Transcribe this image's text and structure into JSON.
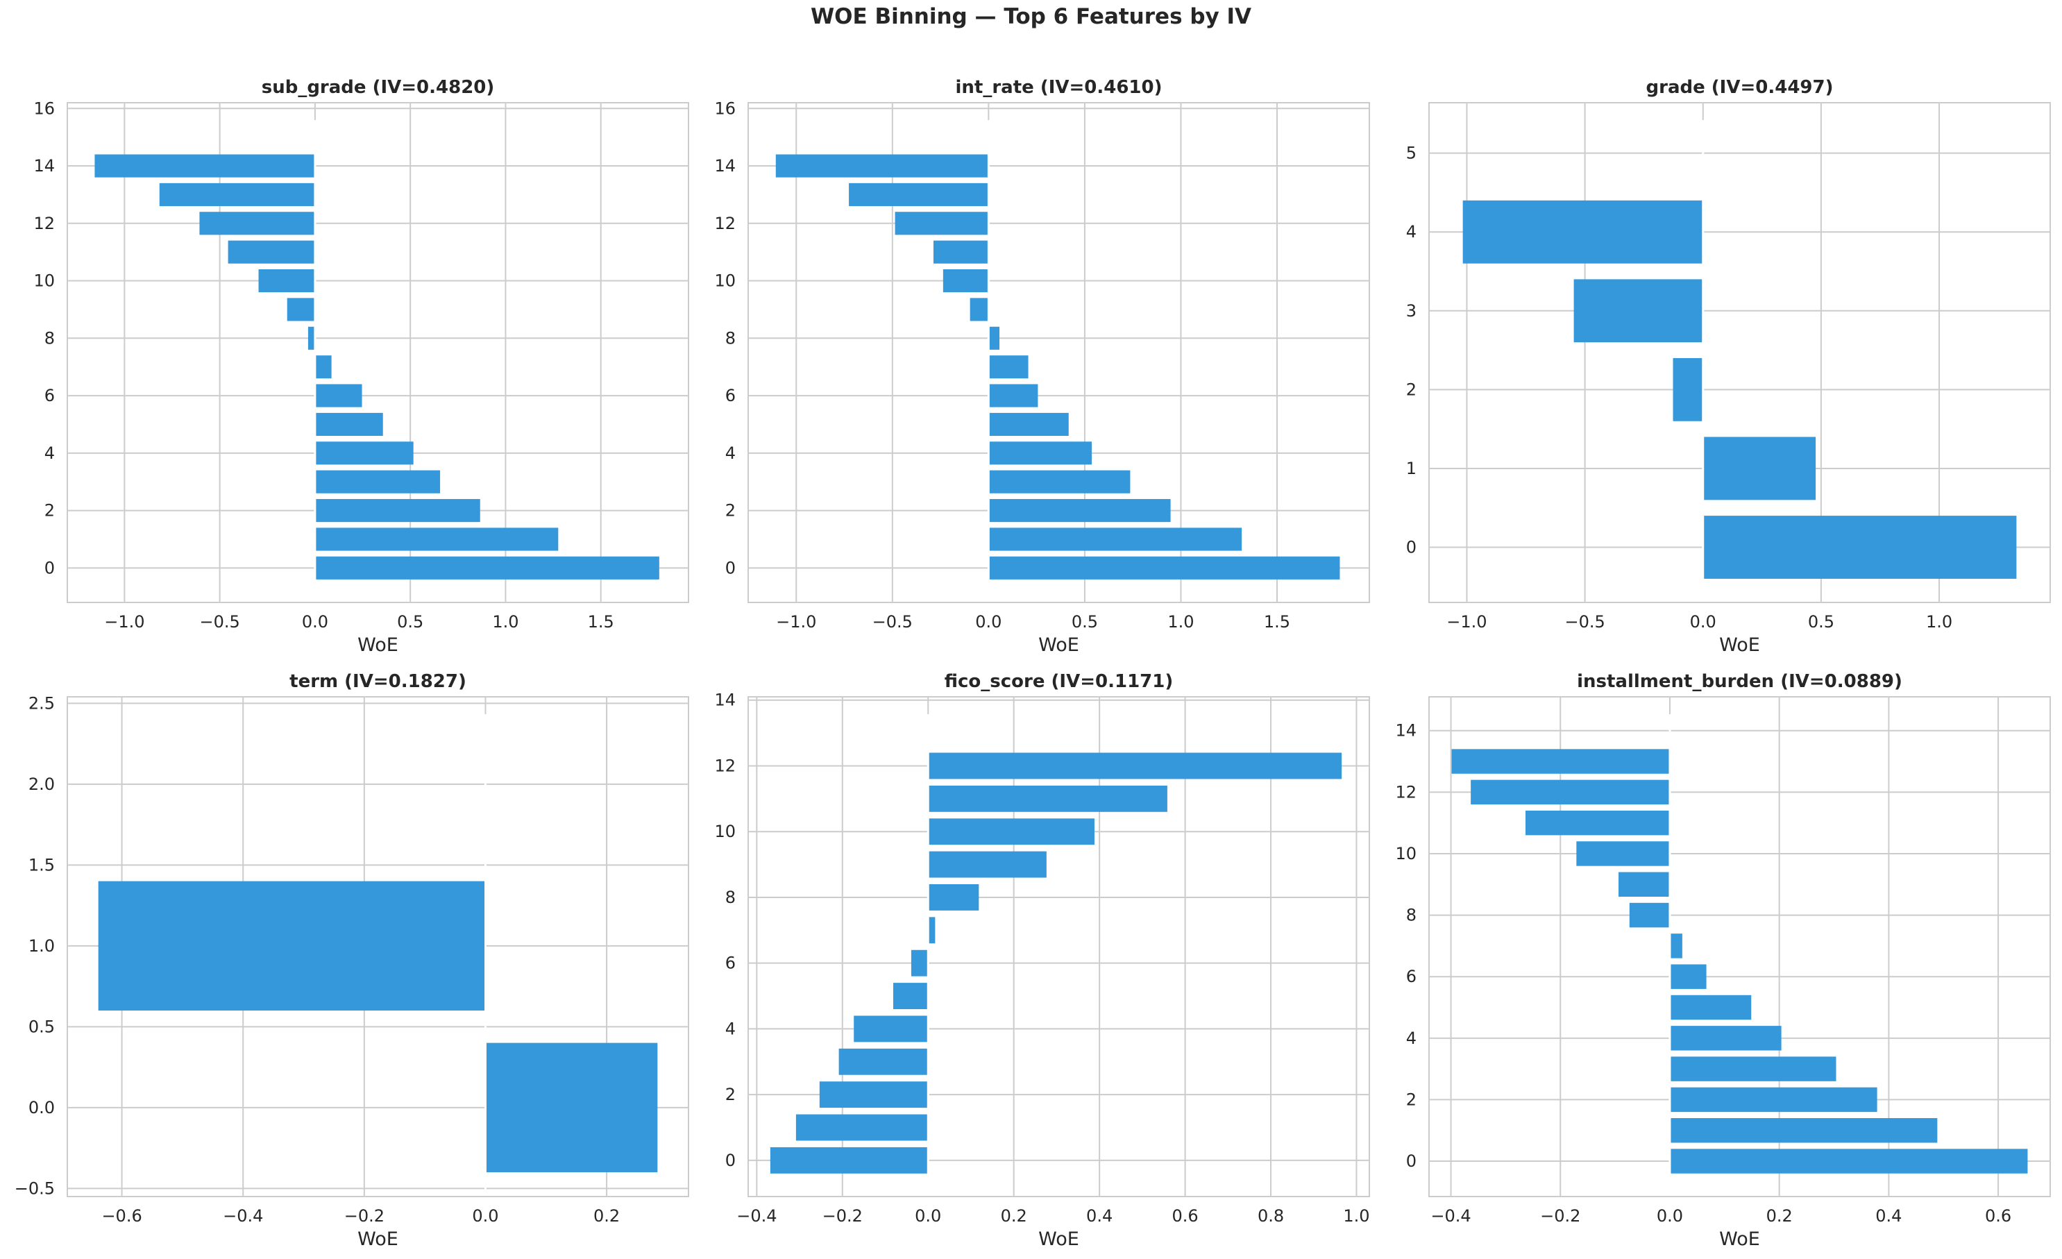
{
  "figure": {
    "suptitle": "WOE Binning — Top 6 Features by IV",
    "bar_color": "#3498db",
    "grid_color": "#cccccc"
  },
  "chart_data": [
    {
      "type": "bar",
      "orientation": "horizontal",
      "title": "sub_grade (IV=0.4820)",
      "xlabel": "WoE",
      "bins": [
        0,
        1,
        2,
        3,
        4,
        5,
        6,
        7,
        8,
        9,
        10,
        11,
        12,
        13,
        14
      ],
      "values": [
        1.81,
        1.28,
        0.87,
        0.66,
        0.52,
        0.36,
        0.25,
        0.09,
        -0.04,
        -0.15,
        -0.3,
        -0.46,
        -0.61,
        -0.82,
        -1.16
      ],
      "xlim": [
        -1.3,
        1.96
      ],
      "ylim": [
        -1.2,
        16.2
      ],
      "xticks": [
        -1.0,
        -0.5,
        0.0,
        0.5,
        1.0,
        1.5
      ],
      "xtick_labels": [
        "−1.0",
        "−0.5",
        "0.0",
        "0.5",
        "1.0",
        "1.5"
      ],
      "yticks": [
        0,
        2,
        4,
        6,
        8,
        10,
        12,
        14,
        16
      ],
      "ytick_labels": [
        "0",
        "2",
        "4",
        "6",
        "8",
        "10",
        "12",
        "14",
        "16"
      ]
    },
    {
      "type": "bar",
      "orientation": "horizontal",
      "title": "int_rate (IV=0.4610)",
      "xlabel": "WoE",
      "bins": [
        0,
        1,
        2,
        3,
        4,
        5,
        6,
        7,
        8,
        9,
        10,
        11,
        12,
        13,
        14
      ],
      "values": [
        1.83,
        1.32,
        0.95,
        0.74,
        0.54,
        0.42,
        0.26,
        0.21,
        0.06,
        -0.1,
        -0.24,
        -0.29,
        -0.49,
        -0.73,
        -1.11
      ],
      "xlim": [
        -1.25,
        1.98
      ],
      "ylim": [
        -1.2,
        16.2
      ],
      "xticks": [
        -1.0,
        -0.5,
        0.0,
        0.5,
        1.0,
        1.5
      ],
      "xtick_labels": [
        "−1.0",
        "−0.5",
        "0.0",
        "0.5",
        "1.0",
        "1.5"
      ],
      "yticks": [
        0,
        2,
        4,
        6,
        8,
        10,
        12,
        14,
        16
      ],
      "ytick_labels": [
        "0",
        "2",
        "4",
        "6",
        "8",
        "10",
        "12",
        "14",
        "16"
      ]
    },
    {
      "type": "bar",
      "orientation": "horizontal",
      "title": "grade (IV=0.4497)",
      "xlabel": "WoE",
      "bins": [
        0,
        1,
        2,
        3,
        4
      ],
      "values": [
        1.33,
        0.48,
        -0.13,
        -0.55,
        -1.02
      ],
      "xlim": [
        -1.16,
        1.47
      ],
      "ylim": [
        -0.7,
        5.64
      ],
      "xticks": [
        -1.0,
        -0.5,
        0.0,
        0.5,
        1.0
      ],
      "xtick_labels": [
        "−1.0",
        "−0.5",
        "0.0",
        "0.5",
        "1.0"
      ],
      "yticks": [
        0,
        1,
        2,
        3,
        4,
        5
      ],
      "ytick_labels": [
        "0",
        "1",
        "2",
        "3",
        "4",
        "5"
      ]
    },
    {
      "type": "bar",
      "orientation": "horizontal",
      "title": "term (IV=0.1827)",
      "xlabel": "WoE",
      "bins": [
        0,
        1
      ],
      "values": [
        0.285,
        -0.64
      ],
      "xlim": [
        -0.69,
        0.335
      ],
      "ylim": [
        -0.55,
        2.54
      ],
      "xticks": [
        -0.6,
        -0.4,
        -0.2,
        0.0,
        0.2
      ],
      "xtick_labels": [
        "−0.6",
        "−0.4",
        "−0.2",
        "0.0",
        "0.2"
      ],
      "yticks": [
        -0.5,
        0.0,
        0.5,
        1.0,
        1.5,
        2.0,
        2.5
      ],
      "ytick_labels": [
        "−0.5",
        "0.0",
        "0.5",
        "1.0",
        "1.5",
        "2.0",
        "2.5"
      ]
    },
    {
      "type": "bar",
      "orientation": "horizontal",
      "title": "fico_score (IV=0.1171)",
      "xlabel": "WoE",
      "bins": [
        0,
        1,
        2,
        3,
        4,
        5,
        6,
        7,
        8,
        9,
        10,
        11,
        12
      ],
      "values": [
        -0.37,
        -0.31,
        -0.255,
        -0.21,
        -0.175,
        -0.083,
        -0.041,
        0.018,
        0.12,
        0.278,
        0.39,
        0.56,
        0.967
      ],
      "xlim": [
        -0.42,
        1.03
      ],
      "ylim": [
        -1.1,
        14.1
      ],
      "xticks": [
        -0.4,
        -0.2,
        0.0,
        0.2,
        0.4,
        0.6,
        0.8,
        1.0
      ],
      "xtick_labels": [
        "−0.4",
        "−0.2",
        "0.0",
        "0.2",
        "0.4",
        "0.6",
        "0.8",
        "1.0"
      ],
      "yticks": [
        0,
        2,
        4,
        6,
        8,
        10,
        12,
        14
      ],
      "ytick_labels": [
        "0",
        "2",
        "4",
        "6",
        "8",
        "10",
        "12",
        "14"
      ]
    },
    {
      "type": "bar",
      "orientation": "horizontal",
      "title": "installment_burden (IV=0.0889)",
      "xlabel": "WoE",
      "bins": [
        0,
        1,
        2,
        3,
        4,
        5,
        6,
        7,
        8,
        9,
        10,
        11,
        12,
        13
      ],
      "values": [
        0.655,
        0.49,
        0.38,
        0.305,
        0.205,
        0.15,
        0.068,
        0.024,
        -0.075,
        -0.095,
        -0.172,
        -0.265,
        -0.365,
        -0.4
      ],
      "xlim": [
        -0.44,
        0.695
      ],
      "ylim": [
        -1.15,
        15.1
      ],
      "xticks": [
        -0.4,
        -0.2,
        0.0,
        0.2,
        0.4,
        0.6
      ],
      "xtick_labels": [
        "−0.4",
        "−0.2",
        "0.0",
        "0.2",
        "0.4",
        "0.6"
      ],
      "yticks": [
        0,
        2,
        4,
        6,
        8,
        10,
        12,
        14
      ],
      "ytick_labels": [
        "0",
        "2",
        "4",
        "6",
        "8",
        "10",
        "12",
        "14"
      ]
    }
  ]
}
